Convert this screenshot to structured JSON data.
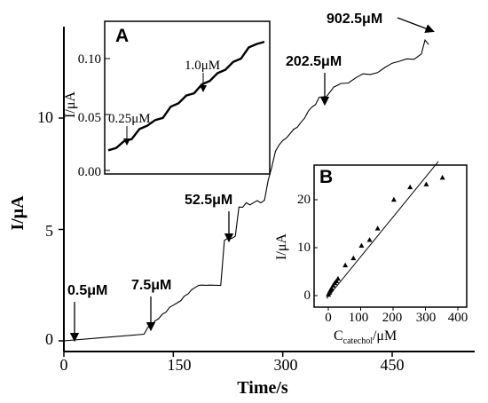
{
  "chart_data": [
    {
      "type": "line",
      "panel": "main",
      "xlabel": "Time/s",
      "ylabel": "I/μA",
      "xlim": [
        0,
        560
      ],
      "ylim": [
        -0.5,
        14
      ],
      "x_ticks": [
        "0",
        "150",
        "300",
        "450"
      ],
      "y_ticks": [
        "0",
        "5",
        "10"
      ],
      "series": [
        {
          "x": [
            0,
            110,
            115,
            120,
            125,
            130,
            135,
            140,
            145,
            150,
            155,
            160,
            165,
            170,
            175,
            180,
            185,
            190,
            195,
            200,
            205,
            210,
            215,
            220,
            225,
            230,
            235,
            240,
            245,
            250,
            255,
            260,
            265,
            270,
            275,
            280,
            285,
            290,
            295,
            300,
            305,
            310,
            315,
            320,
            325,
            330,
            335,
            340,
            345,
            350,
            360,
            370,
            380,
            390,
            400,
            410,
            420,
            430,
            440,
            450,
            460,
            470,
            480,
            490,
            495,
            500
          ],
          "y": [
            0.0,
            0.3,
            0.6,
            0.7,
            0.9,
            1.0,
            1.2,
            1.3,
            1.5,
            1.6,
            1.7,
            1.8,
            2.0,
            2.1,
            2.3,
            2.4,
            2.5,
            2.5,
            2.5,
            2.5,
            2.5,
            2.5,
            2.5,
            4.5,
            4.6,
            4.6,
            4.7,
            6.0,
            6.0,
            6.2,
            6.1,
            6.2,
            6.3,
            6.2,
            6.3,
            7.2,
            7.8,
            8.5,
            8.8,
            9.0,
            9.1,
            9.3,
            9.5,
            9.6,
            9.8,
            10.0,
            10.3,
            10.5,
            10.7,
            10.9,
            11.0,
            11.3,
            11.5,
            11.7,
            11.9,
            12.0,
            12.1,
            12.2,
            12.3,
            12.4,
            12.5,
            12.5,
            12.7,
            12.9,
            13.5,
            13.3
          ]
        }
      ],
      "annotations": [
        {
          "text": "0.5μM",
          "x": 10,
          "y": 0.05
        },
        {
          "text": "7.5μM",
          "x": 112,
          "y": 0.35
        },
        {
          "text": "52.5μM",
          "x": 225,
          "y": 4.6
        },
        {
          "text": "202.5μM",
          "x": 345,
          "y": 11.0
        },
        {
          "text": "902.5μM",
          "x": 495,
          "y": 14.3
        }
      ]
    },
    {
      "type": "line",
      "panel": "A",
      "title": "A",
      "ylabel": "I/μA",
      "ylim": [
        0.0,
        0.13
      ],
      "y_ticks": [
        "0.00",
        "0.05",
        "0.10"
      ],
      "series": [
        {
          "x": [
            0,
            5,
            10,
            15,
            20,
            25,
            30,
            35,
            40,
            45,
            50,
            55,
            60,
            65,
            70,
            75,
            80,
            85,
            90,
            95,
            100
          ],
          "y": [
            0.018,
            0.02,
            0.026,
            0.028,
            0.037,
            0.04,
            0.045,
            0.047,
            0.057,
            0.06,
            0.067,
            0.069,
            0.077,
            0.08,
            0.087,
            0.09,
            0.097,
            0.1,
            0.11,
            0.113,
            0.115
          ]
        }
      ],
      "annotations": [
        {
          "text": "0.25μM",
          "x": 18,
          "y": 0.028
        },
        {
          "text": "1.0μM",
          "x": 56,
          "y": 0.077
        }
      ]
    },
    {
      "type": "scatter",
      "panel": "B",
      "title": "B",
      "xlabel": "C_catechol/μM",
      "ylabel": "I/μA",
      "xlim": [
        -50,
        400
      ],
      "ylim": [
        -3,
        28
      ],
      "x_ticks": [
        "0",
        "100",
        "200",
        "300",
        "400"
      ],
      "y_ticks": [
        "0",
        "10",
        "20"
      ],
      "series": [
        {
          "x": [
            0.5,
            3,
            5,
            7.5,
            10,
            15,
            20,
            25,
            30,
            52.5,
            77.5,
            102.5,
            127.5,
            152.5,
            202.5,
            252.5,
            302.5,
            352.5
          ],
          "y": [
            0.2,
            0.6,
            0.9,
            1.2,
            1.5,
            2.1,
            2.6,
            3.0,
            3.5,
            6.3,
            7.8,
            10.4,
            11.6,
            14.0,
            20.0,
            22.6,
            23.2,
            24.6
          ]
        }
      ],
      "fit_line": {
        "x": [
          -5,
          340
        ],
        "y": [
          -0.6,
          28
        ]
      }
    }
  ]
}
